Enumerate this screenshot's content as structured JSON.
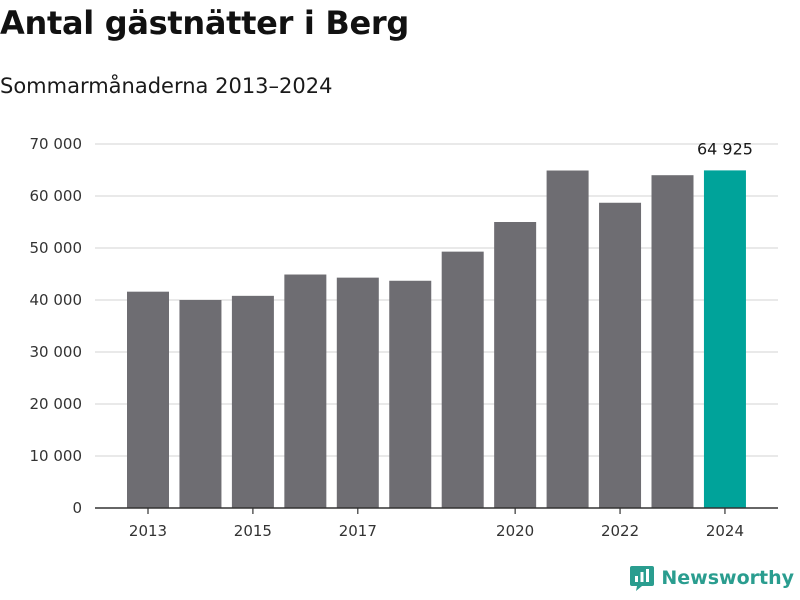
{
  "header": {
    "title": "Antal gästnätter i Berg",
    "subtitle": "Sommarmånaderna 2013–2024"
  },
  "branding": {
    "name": "Newsworthy",
    "icon": "newsworthy-logo-icon"
  },
  "colors": {
    "bar": "#6e6d72",
    "highlight": "#00a39a",
    "grid": "#dcdcdc",
    "axis": "#333333",
    "brand": "#2a9d8f"
  },
  "chart_data": {
    "type": "bar",
    "title": "Antal gästnätter i Berg",
    "subtitle": "Sommarmånaderna 2013–2024",
    "categories": [
      2013,
      2014,
      2015,
      2016,
      2017,
      2018,
      2019,
      2020,
      2021,
      2022,
      2023,
      2024
    ],
    "values": [
      41600,
      40000,
      40800,
      44900,
      44300,
      43700,
      49300,
      55000,
      64900,
      58700,
      64000,
      64925
    ],
    "highlight_index": 11,
    "data_labels": [
      {
        "index": 11,
        "text": "64 925"
      }
    ],
    "x_tick_labels": [
      "2013",
      "2015",
      "2017",
      "2020",
      "2022",
      "2024"
    ],
    "y_tick_labels": [
      "0",
      "10 000",
      "20 000",
      "30 000",
      "40 000",
      "50 000",
      "60 000",
      "70 000"
    ],
    "y_ticks": [
      0,
      10000,
      20000,
      30000,
      40000,
      50000,
      60000,
      70000
    ],
    "ylim": [
      0,
      70000
    ],
    "xlabel": "",
    "ylabel": "",
    "grid": true,
    "legend": "none"
  }
}
